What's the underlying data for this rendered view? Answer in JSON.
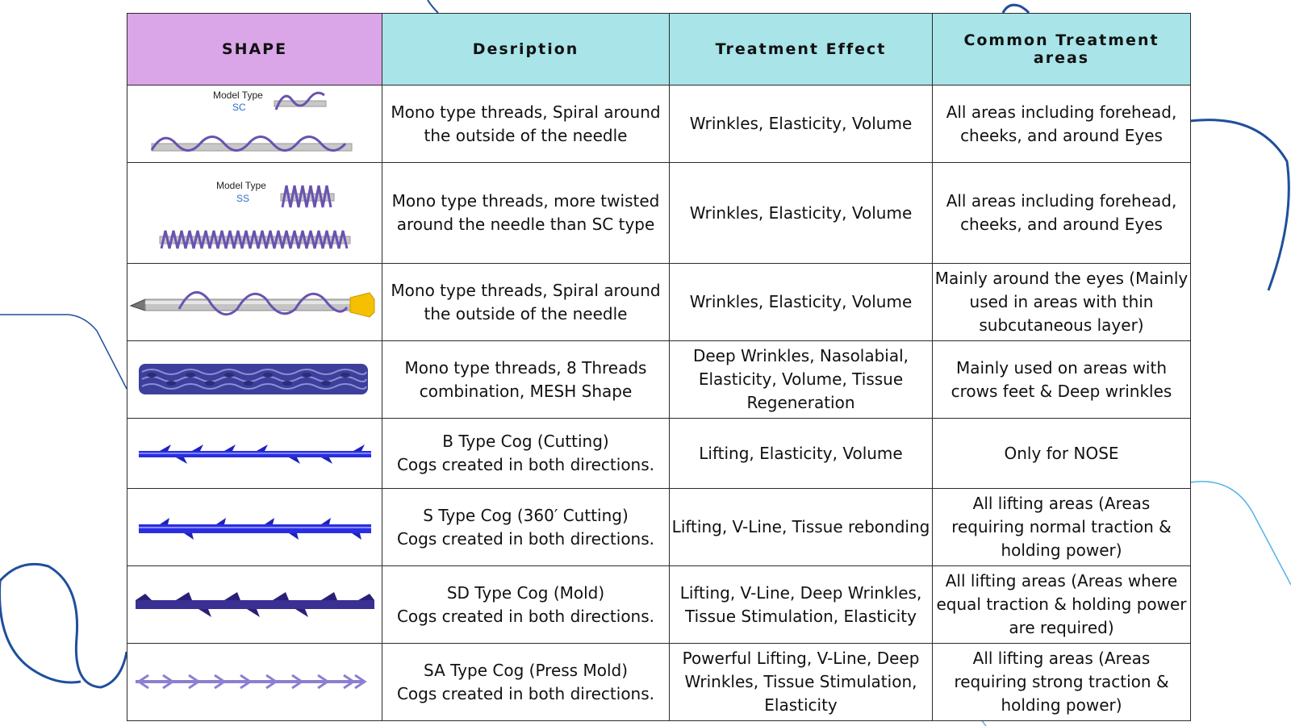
{
  "headers": {
    "shape": "SHAPE",
    "description": "Desription",
    "treatment_effect": "Treatment Effect",
    "areas": "Common Treatment areas"
  },
  "rows": [
    {
      "shape": {
        "model_label": "Model Type",
        "model_code": "SC"
      },
      "description": "Mono type threads, Spiral around the outside of the needle",
      "treatment_effect": "Wrinkles, Elasticity, Volume",
      "areas": "All areas including forehead, cheeks, and around Eyes"
    },
    {
      "shape": {
        "model_label": "Model Type",
        "model_code": "SS"
      },
      "description": "Mono type threads, more twisted around the needle than SC type",
      "treatment_effect": "Wrinkles, Elasticity, Volume",
      "areas": "All areas including forehead, cheeks, and around Eyes"
    },
    {
      "description": "Mono type threads, Spiral around the outside of the needle",
      "treatment_effect": "Wrinkles, Elasticity, Volume",
      "areas": "Mainly around the eyes (Mainly used in areas with thin subcutaneous layer)"
    },
    {
      "description": "Mono type threads, 8 Threads combination, MESH Shape",
      "treatment_effect": "Deep Wrinkles, Nasolabial, Elasticity, Volume, Tissue Regeneration",
      "areas": "Mainly used on areas with crows feet & Deep wrinkles"
    },
    {
      "description_title": "B Type Cog (Cutting)",
      "description": "Cogs created in both directions.",
      "treatment_effect": "Lifting, Elasticity, Volume",
      "areas": "Only for NOSE"
    },
    {
      "description_title": "S Type Cog (360′ Cutting)",
      "description": "Cogs created in both directions.",
      "treatment_effect": "Lifting, V-Line, Tissue rebonding",
      "areas": "All lifting areas (Areas requiring normal traction & holding power)"
    },
    {
      "description_title": "SD Type Cog (Mold)",
      "description": "Cogs created in both directions.",
      "treatment_effect": "Lifting, V-Line, Deep Wrinkles, Tissue Stimulation, Elasticity",
      "areas": "All lifting areas (Areas where equal traction & holding power are required)"
    },
    {
      "description_title": "SA Type Cog (Press Mold)",
      "description": "Cogs created in both directions.",
      "treatment_effect": "Powerful Lifting, V-Line, Deep Wrinkles, Tissue Stimulation, Elasticity",
      "areas": "All lifting areas (Areas requiring strong traction & holding power)"
    }
  ],
  "colors": {
    "shape_header_bg": "#dba6e8",
    "header_bg": "#a8e4e8",
    "thread_purple": "#6a52b0",
    "cog_blue": "#2a2ee0",
    "decor_dark_blue": "#1f4f9c",
    "decor_light_blue": "#56b3e8"
  }
}
